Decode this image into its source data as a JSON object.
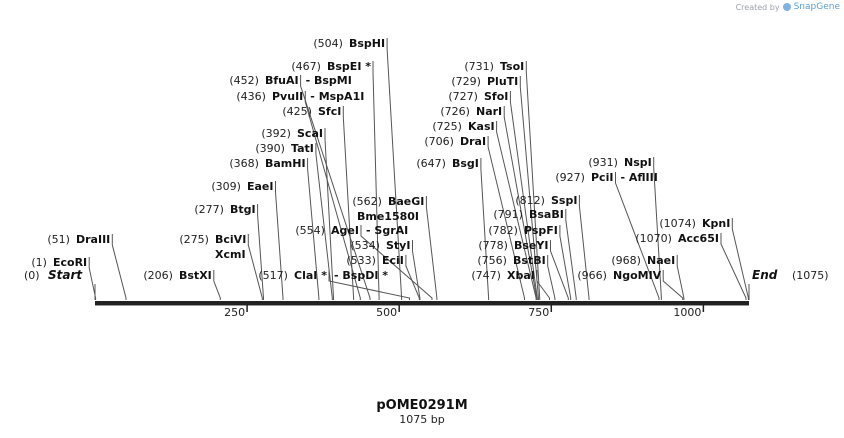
{
  "credit": {
    "prefix": "Created by",
    "brand": "SnapGene"
  },
  "plasmid": {
    "name": "pOME0291M",
    "length_label": "1075 bp"
  },
  "ticks": [
    "250",
    "500",
    "750",
    "1000"
  ],
  "ends": {
    "start_label": "Start",
    "start_pos": "(0)",
    "end_label": "End",
    "end_pos": "(1075)"
  },
  "chart_data": {
    "type": "restriction-map",
    "sequence_length": 1075,
    "sites": [
      {
        "pos": 1,
        "label": "(1)",
        "name": "EcoRI"
      },
      {
        "pos": 51,
        "label": "(51)",
        "name": "DraIII"
      },
      {
        "pos": 206,
        "label": "(206)",
        "name": "BstXI"
      },
      {
        "pos": 275,
        "label": "(275)",
        "name": "BciVI",
        "name2": "XcmI"
      },
      {
        "pos": 277,
        "label": "(277)",
        "name": "BtgI"
      },
      {
        "pos": 309,
        "label": "(309)",
        "name": "EaeI"
      },
      {
        "pos": 368,
        "label": "(368)",
        "name": "BamHI"
      },
      {
        "pos": 390,
        "label": "(390)",
        "name": "TatI"
      },
      {
        "pos": 392,
        "label": "(392)",
        "name": "ScaI"
      },
      {
        "pos": 425,
        "label": "(425)",
        "name": "SfcI"
      },
      {
        "pos": 436,
        "label": "(436)",
        "name": "PvuII",
        "extra": "- MspA1I"
      },
      {
        "pos": 452,
        "label": "(452)",
        "name": "BfuAI",
        "extra": "- BspMI"
      },
      {
        "pos": 467,
        "label": "(467)",
        "name": "BspEI *"
      },
      {
        "pos": 504,
        "label": "(504)",
        "name": "BspHI"
      },
      {
        "pos": 517,
        "label": "(517)",
        "name": "ClaI *",
        "extra": "- BspDI *"
      },
      {
        "pos": 533,
        "label": "(533)",
        "name": "EciI"
      },
      {
        "pos": 534,
        "label": "(534)",
        "name": "StyI"
      },
      {
        "pos": 554,
        "label": "(554)",
        "name": "AgeI",
        "extra": "- SgrAI"
      },
      {
        "pos": 562,
        "label": "(562)",
        "name": "BaeGI",
        "name2": "Bme1580I"
      },
      {
        "pos": 647,
        "label": "(647)",
        "name": "BsgI"
      },
      {
        "pos": 706,
        "label": "(706)",
        "name": "DraI"
      },
      {
        "pos": 725,
        "label": "(725)",
        "name": "KasI"
      },
      {
        "pos": 726,
        "label": "(726)",
        "name": "NarI"
      },
      {
        "pos": 727,
        "label": "(727)",
        "name": "SfoI"
      },
      {
        "pos": 729,
        "label": "(729)",
        "name": "PluTI"
      },
      {
        "pos": 731,
        "label": "(731)",
        "name": "TsoI"
      },
      {
        "pos": 747,
        "label": "(747)",
        "name": "XbaI"
      },
      {
        "pos": 756,
        "label": "(756)",
        "name": "BstBI"
      },
      {
        "pos": 778,
        "label": "(778)",
        "name": "BseYI"
      },
      {
        "pos": 782,
        "label": "(782)",
        "name": "PspFI"
      },
      {
        "pos": 791,
        "label": "(791)",
        "name": "BsaBI"
      },
      {
        "pos": 812,
        "label": "(812)",
        "name": "SspI"
      },
      {
        "pos": 927,
        "label": "(927)",
        "name": "PciI",
        "extra": "- AflIII"
      },
      {
        "pos": 931,
        "label": "(931)",
        "name": "NspI"
      },
      {
        "pos": 966,
        "label": "(966)",
        "name": "NgoMIV"
      },
      {
        "pos": 968,
        "label": "(968)",
        "name": "NaeI"
      },
      {
        "pos": 1070,
        "label": "(1070)",
        "name": "Acc65I"
      },
      {
        "pos": 1074,
        "label": "(1074)",
        "name": "KpnI"
      }
    ]
  }
}
